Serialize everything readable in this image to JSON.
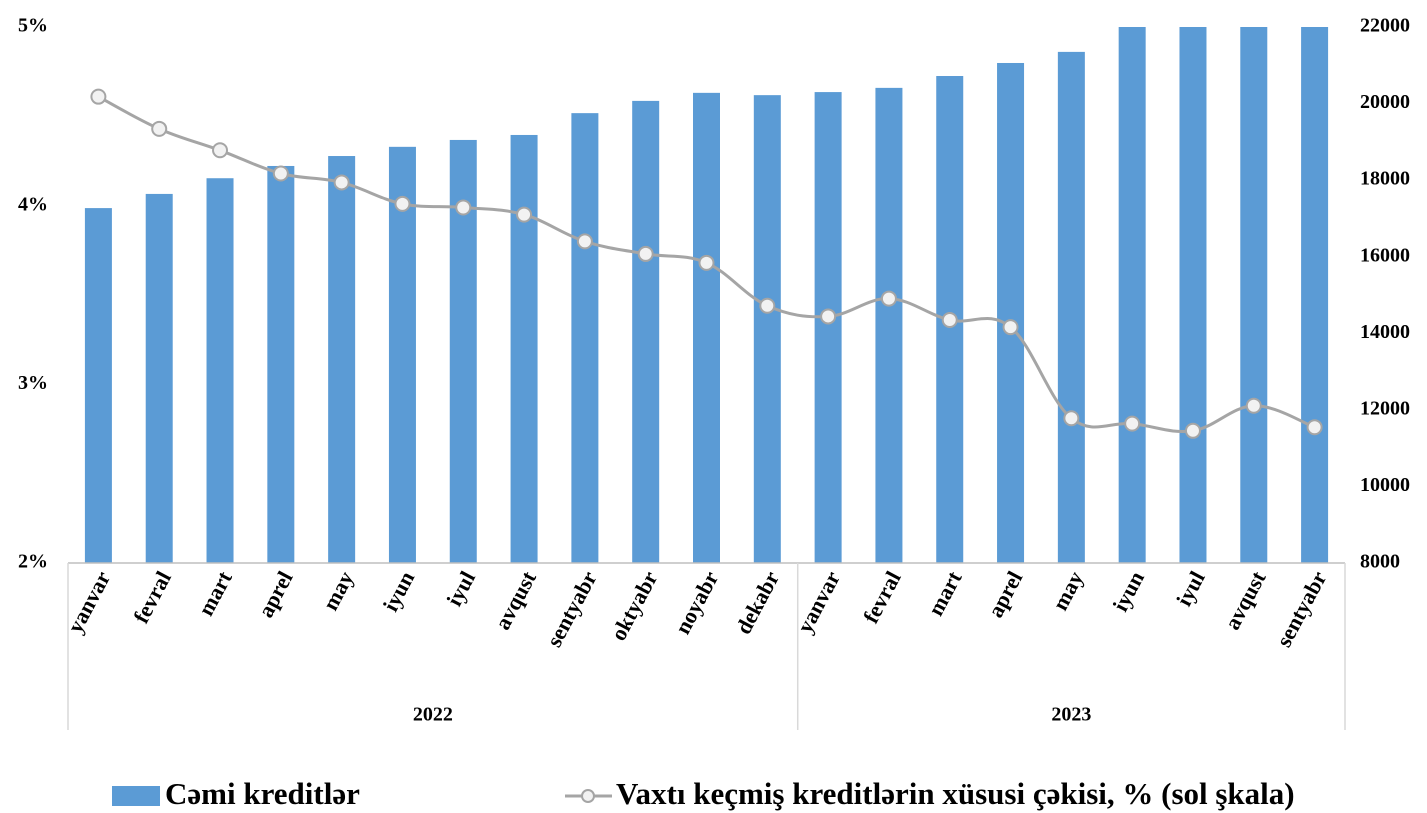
{
  "chart_data": {
    "type": "combo",
    "categories": [
      "yanvar",
      "fevral",
      "mart",
      "aprel",
      "may",
      "iyun",
      "iyul",
      "avqust",
      "sentyabr",
      "oktyabr",
      "noyabr",
      "dekabr",
      "yanvar",
      "fevral",
      "mart",
      "aprel",
      "may",
      "iyun",
      "iyul",
      "avqust",
      "sentyabr"
    ],
    "category_groups": [
      {
        "label": "2022",
        "span": 12
      },
      {
        "label": "2023",
        "span": 9
      }
    ],
    "series": [
      {
        "name": "Cəmi kreditlər",
        "type": "bar",
        "axis": "y2",
        "color": "#5b9bd5",
        "values": [
          17270,
          17640,
          18050,
          18370,
          18630,
          18870,
          19050,
          19180,
          19750,
          20070,
          20280,
          20220,
          20300,
          20410,
          20720,
          21060,
          21350,
          22000,
          22000,
          22000,
          22000
        ]
      },
      {
        "name": "Vaxtı keçmiş kreditlərin xüsusi çəkisi, % (sol şkala)",
        "type": "line",
        "axis": "y",
        "color": "#a5a5a5",
        "values": [
          4.61,
          4.43,
          4.31,
          4.18,
          4.13,
          4.01,
          3.99,
          3.95,
          3.8,
          3.73,
          3.68,
          3.44,
          3.38,
          3.48,
          3.36,
          3.32,
          2.81,
          2.78,
          2.74,
          2.88,
          2.76
        ]
      }
    ],
    "ylim": [
      2,
      5
    ],
    "yticks": [
      {
        "value": 2,
        "label": "2%"
      },
      {
        "value": 3,
        "label": "3%"
      },
      {
        "value": 4,
        "label": "4%"
      },
      {
        "value": 5,
        "label": "5%"
      }
    ],
    "y2lim": [
      8000,
      22000
    ],
    "y2ticks": [
      8000,
      10000,
      12000,
      14000,
      16000,
      18000,
      20000,
      22000
    ],
    "legend": "bottom"
  }
}
